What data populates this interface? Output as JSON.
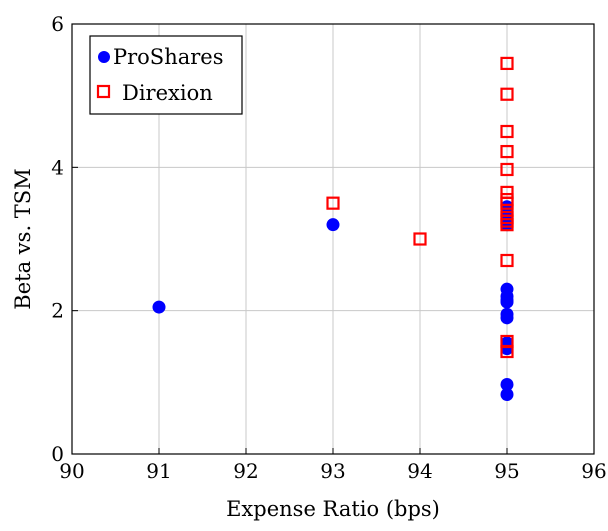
{
  "chart_data": {
    "type": "scatter",
    "title": "",
    "xlabel": "Expense Ratio (bps)",
    "ylabel": "Beta vs. TSM",
    "xlim": [
      90,
      96
    ],
    "ylim": [
      0,
      6
    ],
    "xticks": [
      90,
      91,
      92,
      93,
      94,
      95,
      96
    ],
    "yticks": [
      0,
      2,
      4,
      6
    ],
    "grid": true,
    "legend_position": "top-left",
    "series": [
      {
        "name": "ProShares",
        "marker": "filled-circle",
        "color": "#0000ff",
        "x": [
          91,
          93,
          95,
          95,
          95,
          95,
          95,
          95,
          95,
          95,
          95,
          95,
          95,
          95,
          95,
          95,
          95,
          95
        ],
        "y": [
          2.05,
          3.2,
          0.83,
          0.97,
          1.47,
          1.55,
          1.9,
          1.95,
          2.12,
          2.15,
          2.2,
          2.3,
          3.2,
          3.25,
          3.3,
          3.35,
          3.4,
          3.45
        ]
      },
      {
        "name": "Direxion",
        "marker": "open-square",
        "color": "#ff0000",
        "x": [
          93,
          94,
          95,
          95,
          95,
          95,
          95,
          95,
          95,
          95,
          95,
          95,
          95,
          95,
          95,
          95,
          95
        ],
        "y": [
          3.5,
          3.0,
          1.43,
          1.57,
          2.7,
          3.2,
          3.3,
          3.4,
          3.5,
          3.65,
          3.97,
          4.22,
          4.5,
          5.02,
          5.45,
          3.25,
          3.55
        ]
      }
    ]
  }
}
